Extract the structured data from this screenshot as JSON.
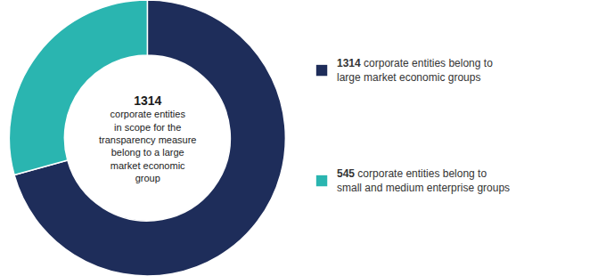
{
  "chart_data": {
    "type": "pie",
    "values": [
      1314,
      545
    ],
    "colors": [
      "#1e2d5a",
      "#2ab5b0"
    ],
    "data_labels": false,
    "center_text": [
      "1314",
      "corporate entities",
      "in scope for the",
      "transparency measure",
      "belong to a large",
      "market economic",
      "group"
    ],
    "annotations": [
      [
        "1314 corporate entities belong to",
        "large market economic groups"
      ],
      [
        "545 corporate entities belong to",
        "small and medium enterprise groups"
      ]
    ]
  }
}
